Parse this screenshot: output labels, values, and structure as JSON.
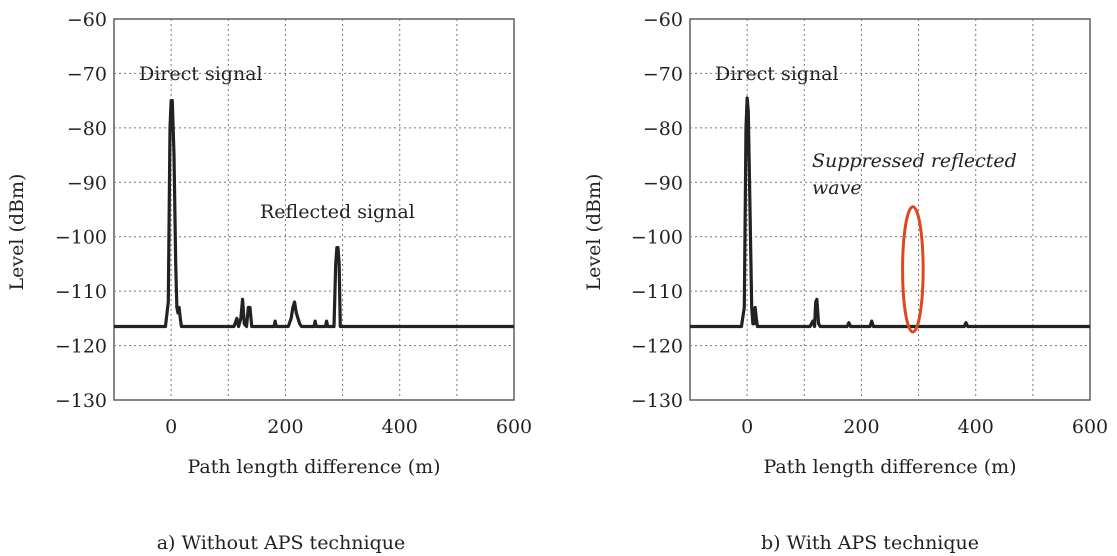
{
  "chart_data": [
    {
      "type": "line",
      "caption": "a) Without APS technique",
      "xlabel": "Path length difference (m)",
      "ylabel": "Level (dBm)",
      "xlim": [
        -100,
        600
      ],
      "ylim": [
        -130,
        -60
      ],
      "xticks": [
        0,
        200,
        400,
        600
      ],
      "yticks": [
        -60,
        -70,
        -80,
        -90,
        -100,
        -110,
        -120,
        -130
      ],
      "grid": true,
      "series": [
        {
          "x": [
            -100,
            -10,
            -5,
            -2,
            0,
            2,
            5,
            8,
            10,
            12,
            14,
            16,
            18,
            20,
            110,
            115,
            118,
            122,
            125,
            128,
            132,
            135,
            138,
            141,
            144,
            150,
            180,
            182,
            184,
            205,
            210,
            213,
            216,
            219,
            222,
            225,
            228,
            250,
            252,
            254,
            270,
            272,
            274,
            285,
            288,
            290,
            292,
            294,
            296,
            600
          ],
          "y": [
            -116.5,
            -116.5,
            -112,
            -80,
            -75,
            -75,
            -85,
            -105,
            -113,
            -114,
            -113,
            -115,
            -116.5,
            -116.5,
            -116.5,
            -115,
            -116.5,
            -115,
            -111.5,
            -116,
            -116.5,
            -113,
            -113,
            -116.5,
            -116.5,
            -116.5,
            -116.5,
            -115.5,
            -116.5,
            -116.5,
            -115,
            -113,
            -112,
            -114,
            -115,
            -116,
            -116.5,
            -116.5,
            -115.5,
            -116.5,
            -116.5,
            -115.5,
            -116.5,
            -116.5,
            -105,
            -102,
            -102,
            -105,
            -116.5,
            -116.5
          ]
        }
      ],
      "annotations": [
        "Direct signal",
        "Reflected signal"
      ]
    },
    {
      "type": "line",
      "caption": "b) With APS technique",
      "xlabel": "Path length difference (m)",
      "ylabel": "Level (dBm)",
      "xlim": [
        -100,
        600
      ],
      "ylim": [
        -130,
        -60
      ],
      "xticks": [
        0,
        200,
        400,
        600
      ],
      "yticks": [
        -60,
        -70,
        -80,
        -90,
        -100,
        -110,
        -120,
        -130
      ],
      "grid": true,
      "series": [
        {
          "x": [
            -100,
            -10,
            -5,
            -2,
            0,
            2,
            5,
            8,
            10,
            12,
            14,
            16,
            18,
            20,
            110,
            115,
            118,
            120,
            122,
            125,
            128,
            132,
            175,
            178,
            181,
            215,
            218,
            221,
            380,
            383,
            386,
            600
          ],
          "y": [
            -116.5,
            -116.5,
            -113,
            -80,
            -74.5,
            -77,
            -95,
            -113,
            -116,
            -116,
            -113,
            -115,
            -116.5,
            -116.5,
            -116.5,
            -115.5,
            -116.5,
            -112,
            -111.5,
            -116,
            -116.5,
            -116.5,
            -116.5,
            -115.8,
            -116.5,
            -116.5,
            -115.5,
            -116.5,
            -116.5,
            -115.8,
            -116.5,
            -116.5
          ]
        }
      ],
      "annotations": [
        "Direct signal",
        "Suppressed reflected",
        "wave"
      ],
      "highlight": {
        "shape": "ellipse",
        "center_x": 290,
        "center_y": -106,
        "radius_x": 18,
        "radius_y": 11.5,
        "color": "#e0461f"
      }
    }
  ]
}
